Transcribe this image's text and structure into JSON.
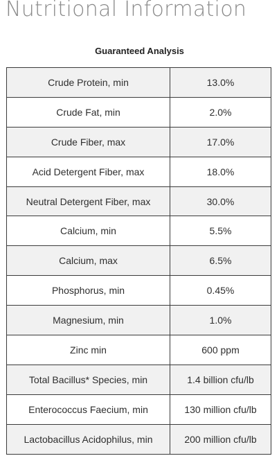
{
  "title": "Nutritional Information",
  "table": {
    "caption": "Guaranteed Analysis",
    "rows": [
      {
        "nutrient": "Crude Protein, min",
        "value": "13.0%"
      },
      {
        "nutrient": "Crude Fat, min",
        "value": "2.0%"
      },
      {
        "nutrient": "Crude Fiber, max",
        "value": "17.0%"
      },
      {
        "nutrient": "Acid Detergent Fiber, max",
        "value": "18.0%"
      },
      {
        "nutrient": "Neutral Detergent Fiber, max",
        "value": "30.0%"
      },
      {
        "nutrient": "Calcium, min",
        "value": "5.5%"
      },
      {
        "nutrient": "Calcium, max",
        "value": "6.5%"
      },
      {
        "nutrient": "Phosphorus, min",
        "value": "0.45%"
      },
      {
        "nutrient": "Magnesium, min",
        "value": "1.0%"
      },
      {
        "nutrient": "Zinc min",
        "value": "600 ppm"
      },
      {
        "nutrient": "Total Bacillus* Species, min",
        "value": "1.4 billion cfu/lb"
      },
      {
        "nutrient": "Enterococcus Faecium, min",
        "value": "130 million cfu/lb"
      },
      {
        "nutrient": "Lactobacillus Acidophilus, min",
        "value": "200 million cfu/lb"
      }
    ]
  }
}
